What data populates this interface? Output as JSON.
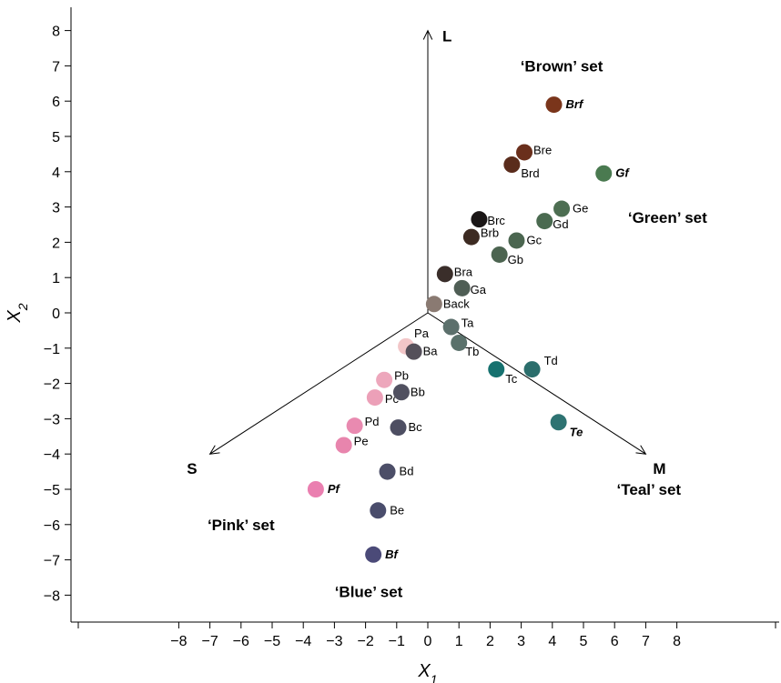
{
  "chart_data": {
    "type": "scatter",
    "xlabel": {
      "main": "X",
      "sub": "1"
    },
    "ylabel": {
      "main": "X",
      "sub": "2"
    },
    "xlim": [
      -8.6,
      8.6
    ],
    "ylim": [
      -8.6,
      8.6
    ],
    "x_ticks": [
      -8,
      -7,
      -6,
      -5,
      -4,
      -3,
      -2,
      -1,
      0,
      1,
      2,
      3,
      4,
      5,
      6,
      7,
      8
    ],
    "x_tick_labels": [
      "−8",
      "−7",
      "−6",
      "−5",
      "−4",
      "−3",
      "−2",
      "−1",
      "0",
      "1",
      "2",
      "3",
      "4",
      "5",
      "6",
      "7",
      "8"
    ],
    "y_ticks": [
      8,
      7,
      6,
      5,
      4,
      3,
      2,
      1,
      0,
      -1,
      -2,
      -3,
      -4,
      -5,
      -6,
      -7,
      -8
    ],
    "y_tick_labels": [
      "8",
      "7",
      "6",
      "5",
      "4",
      "3",
      "2",
      "1",
      "0",
      "−1",
      "−2",
      "−3",
      "−4",
      "−5",
      "−6",
      "−7",
      "−8"
    ],
    "origin": [
      0,
      0
    ],
    "directions": [
      {
        "label": "L",
        "end": [
          0,
          8
        ]
      },
      {
        "label": "M",
        "end": [
          7,
          -4
        ]
      },
      {
        "label": "S",
        "end": [
          -7,
          -4
        ]
      }
    ],
    "set_labels": [
      {
        "text": "‘Brown’ set",
        "at": [
          4.3,
          7.0
        ]
      },
      {
        "text": "‘Green’ set",
        "at": [
          7.7,
          2.7
        ]
      },
      {
        "text": "‘Teal’ set",
        "at": [
          7.1,
          -5.0
        ]
      },
      {
        "text": "‘Pink’ set",
        "at": [
          -6.0,
          -6.0
        ]
      },
      {
        "text": "‘Blue’ set",
        "at": [
          -1.9,
          -7.9
        ]
      }
    ],
    "points": [
      {
        "label": "Back",
        "x": 0.2,
        "y": 0.25,
        "color": "#8a7a72",
        "italic": false
      },
      {
        "label": "Bra",
        "x": 0.55,
        "y": 1.1,
        "color": "#3a2e2a",
        "italic": false
      },
      {
        "label": "Brb",
        "x": 1.4,
        "y": 2.15,
        "color": "#3d2b22",
        "italic": false
      },
      {
        "label": "Brc",
        "x": 1.65,
        "y": 2.65,
        "color": "#1a1616",
        "italic": false
      },
      {
        "label": "Brd",
        "x": 2.7,
        "y": 4.2,
        "color": "#5a2c1c",
        "italic": false
      },
      {
        "label": "Bre",
        "x": 3.1,
        "y": 4.55,
        "color": "#6a2f1c",
        "italic": false
      },
      {
        "label": "Brf",
        "x": 4.05,
        "y": 5.9,
        "color": "#7a351b",
        "italic": true
      },
      {
        "label": "Ga",
        "x": 1.1,
        "y": 0.7,
        "color": "#4f5e55",
        "italic": false
      },
      {
        "label": "Gb",
        "x": 2.3,
        "y": 1.65,
        "color": "#4c6450",
        "italic": false
      },
      {
        "label": "Gc",
        "x": 2.85,
        "y": 2.05,
        "color": "#4b6650",
        "italic": false
      },
      {
        "label": "Gd",
        "x": 3.75,
        "y": 2.6,
        "color": "#4a6a50",
        "italic": false
      },
      {
        "label": "Ge",
        "x": 4.3,
        "y": 2.95,
        "color": "#4d6e52",
        "italic": false
      },
      {
        "label": "Gf",
        "x": 5.65,
        "y": 3.95,
        "color": "#4a7a50",
        "italic": true
      },
      {
        "label": "Ta",
        "x": 0.75,
        "y": -0.4,
        "color": "#5c706c",
        "italic": false
      },
      {
        "label": "Tb",
        "x": 1.0,
        "y": -0.85,
        "color": "#5a716b",
        "italic": false
      },
      {
        "label": "Tc",
        "x": 2.2,
        "y": -1.6,
        "color": "#16716f",
        "italic": false
      },
      {
        "label": "Td",
        "x": 3.35,
        "y": -1.6,
        "color": "#2b6e6c",
        "italic": false
      },
      {
        "label": "Te",
        "x": 4.2,
        "y": -3.1,
        "color": "#2e7372",
        "italic": true
      },
      {
        "label": "Pa",
        "x": -0.7,
        "y": -0.95,
        "color": "#f2c6c8",
        "italic": false
      },
      {
        "label": "Pb",
        "x": -1.4,
        "y": -1.9,
        "color": "#eda7bc",
        "italic": false
      },
      {
        "label": "Pc",
        "x": -1.7,
        "y": -2.4,
        "color": "#eca0b8",
        "italic": false
      },
      {
        "label": "Pd",
        "x": -2.35,
        "y": -3.2,
        "color": "#e98ab0",
        "italic": false
      },
      {
        "label": "Pe",
        "x": -2.7,
        "y": -3.75,
        "color": "#e885ad",
        "italic": false
      },
      {
        "label": "Pf",
        "x": -3.6,
        "y": -5.0,
        "color": "#ea7fb0",
        "italic": true
      },
      {
        "label": "Ba",
        "x": -0.45,
        "y": -1.1,
        "color": "#55505a",
        "italic": false
      },
      {
        "label": "Bb",
        "x": -0.85,
        "y": -2.25,
        "color": "#505060",
        "italic": false
      },
      {
        "label": "Bc",
        "x": -0.95,
        "y": -3.25,
        "color": "#4d4e62",
        "italic": false
      },
      {
        "label": "Bd",
        "x": -1.3,
        "y": -4.5,
        "color": "#4c4e68",
        "italic": false
      },
      {
        "label": "Be",
        "x": -1.6,
        "y": -5.6,
        "color": "#4a4d6c",
        "italic": false
      },
      {
        "label": "Bf",
        "x": -1.75,
        "y": -6.85,
        "color": "#4b4a78",
        "italic": true
      }
    ]
  }
}
